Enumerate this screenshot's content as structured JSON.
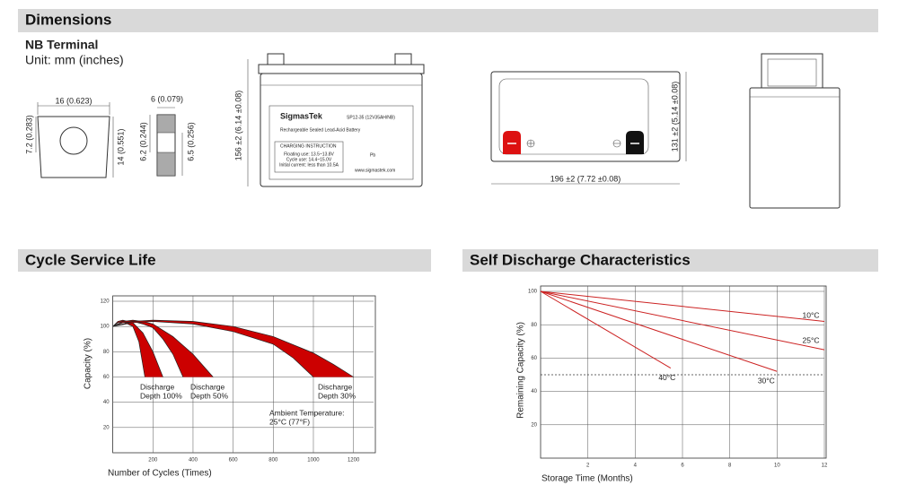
{
  "sections": {
    "dimensions": "Dimensions",
    "cycle_life": "Cycle Service Life",
    "self_discharge": "Self Discharge Characteristics"
  },
  "terminal": {
    "title": "NB Terminal",
    "unit": "Unit: mm (inches)",
    "width": "16 (0.623)",
    "height_left": "7.2 (0.283)",
    "height_right": "14 (0.551)",
    "thickness": "6 (0.079)",
    "hole_offset": "6.2 (0.244)",
    "hole_height": "6.5 (0.256)"
  },
  "battery": {
    "height": "156 ±2 (6.14 ±0.08)",
    "length": "196 ±2 (7.72 ±0.08)",
    "width": "131 ±2 (5.14 ±0.08)",
    "brand": "SigmasTek",
    "model": "SP12-35 (12V35AH/NB)",
    "description": "Rechargeable Sealed Lead-Acid Battery",
    "charging_title": "CHARGING INSTRUCTION",
    "charging_lines": [
      "Floating use: 13.5~13.8V",
      "Cycle use: 14.4~15.0V",
      "Initial current: less than 10.5A"
    ],
    "website": "www.sigmastek.com",
    "symbol": "Pb"
  },
  "cycle_chart": {
    "type": "band",
    "xlabel": "Number of Cycles (Times)",
    "ylabel": "Capacity (%)",
    "xlim": [
      0,
      1300
    ],
    "ylim": [
      0,
      120
    ],
    "xticks": [
      200,
      400,
      600,
      800,
      1000,
      1200
    ],
    "yticks": [
      20,
      40,
      60,
      80,
      100,
      120
    ],
    "grid": true,
    "color": "#cc0000",
    "bands": [
      {
        "label": [
          "Discharge",
          "Depth 100%"
        ],
        "upper": {
          "x": [
            0,
            25,
            50,
            100,
            150,
            200,
            250
          ],
          "values": [
            100,
            104,
            105,
            103,
            95,
            80,
            60
          ]
        },
        "lower": {
          "x": [
            0,
            25,
            50,
            100,
            130,
            160
          ],
          "values": [
            100,
            103,
            104,
            100,
            88,
            60
          ]
        }
      },
      {
        "label": [
          "Discharge",
          "Depth 50%"
        ],
        "upper": {
          "x": [
            0,
            50,
            100,
            150,
            200,
            300,
            400,
            500
          ],
          "values": [
            100,
            104,
            105,
            104,
            102,
            92,
            78,
            60
          ]
        },
        "lower": {
          "x": [
            0,
            50,
            100,
            150,
            200,
            250,
            300,
            350
          ],
          "values": [
            100,
            103,
            104,
            102,
            99,
            90,
            78,
            60
          ]
        }
      },
      {
        "label": [
          "Discharge",
          "Depth 30%"
        ],
        "upper": {
          "x": [
            0,
            100,
            200,
            400,
            600,
            800,
            1000,
            1100,
            1200
          ],
          "values": [
            100,
            104,
            105,
            104,
            100,
            92,
            79,
            70,
            60
          ]
        },
        "lower": {
          "x": [
            0,
            100,
            200,
            400,
            600,
            800,
            900,
            1000
          ],
          "values": [
            100,
            103,
            104,
            102,
            96,
            86,
            75,
            60
          ]
        }
      }
    ],
    "annotation": [
      "Ambient Temperature:",
      "25°C (77°F)"
    ]
  },
  "discharge_chart": {
    "type": "line",
    "xlabel": "Storage Time (Months)",
    "ylabel": "Remaining Capacity (%)",
    "xlim": [
      0,
      12
    ],
    "ylim": [
      0,
      100
    ],
    "xticks": [
      2,
      4,
      6,
      8,
      10,
      12
    ],
    "yticks": [
      20,
      40,
      60,
      80,
      100
    ],
    "grid": true,
    "reference_line": 50,
    "series": [
      {
        "name": "10°C",
        "color": "#cc2222",
        "x": [
          0,
          12
        ],
        "values": [
          100,
          82
        ]
      },
      {
        "name": "25°C",
        "color": "#cc2222",
        "x": [
          0,
          12
        ],
        "values": [
          100,
          65
        ]
      },
      {
        "name": "30°C",
        "color": "#cc2222",
        "x": [
          0,
          10
        ],
        "values": [
          100,
          52
        ]
      },
      {
        "name": "40°C",
        "color": "#cc2222",
        "x": [
          0,
          5.5
        ],
        "values": [
          100,
          54
        ]
      }
    ]
  }
}
